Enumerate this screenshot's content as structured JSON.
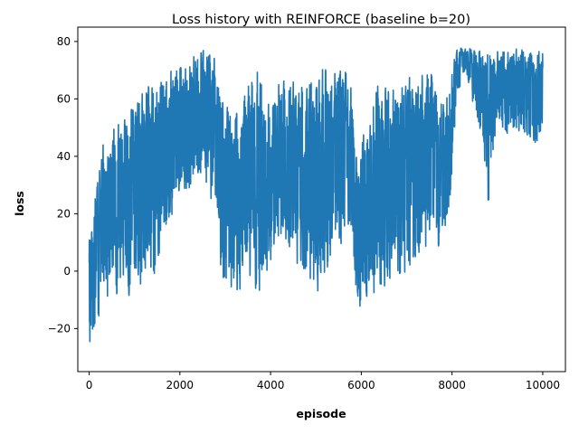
{
  "chart_data": {
    "type": "line",
    "title": "Loss history with REINFORCE (baseline b=20)",
    "xlabel": "episode",
    "ylabel": "loss",
    "xlim": [
      -250,
      10500
    ],
    "ylim": [
      -35,
      85
    ],
    "xticks": [
      0,
      2000,
      4000,
      6000,
      8000,
      10000
    ],
    "yticks": [
      -20,
      0,
      20,
      40,
      60,
      80
    ],
    "grid": false,
    "legend": "none",
    "series_color": "#1f77b4",
    "x_range": [
      0,
      10000
    ],
    "envelope": {
      "x": [
        0,
        100,
        300,
        600,
        1000,
        1300,
        1500,
        1800,
        2100,
        2500,
        2800,
        2900,
        3200,
        3500,
        3800,
        3900,
        4200,
        4600,
        5000,
        5300,
        5500,
        5800,
        5900,
        6200,
        6500,
        6800,
        7200,
        7500,
        7700,
        7900,
        8100,
        8300,
        8700,
        8800,
        9000,
        9300,
        9600,
        9900,
        10000
      ],
      "low": [
        -28,
        -22,
        -15,
        -12,
        -8,
        -10,
        -5,
        15,
        25,
        30,
        20,
        -5,
        -10,
        -5,
        -10,
        -5,
        10,
        0,
        -10,
        -5,
        10,
        5,
        -15,
        -10,
        -10,
        -5,
        -5,
        10,
        0,
        10,
        60,
        70,
        40,
        20,
        50,
        45,
        45,
        40,
        50
      ],
      "high": [
        15,
        25,
        45,
        55,
        62,
        65,
        70,
        72,
        75,
        78,
        75,
        65,
        60,
        65,
        78,
        60,
        70,
        68,
        75,
        70,
        78,
        65,
        40,
        60,
        70,
        65,
        70,
        75,
        60,
        65,
        78,
        78,
        78,
        78,
        78,
        78,
        78,
        78,
        78
      ]
    }
  }
}
